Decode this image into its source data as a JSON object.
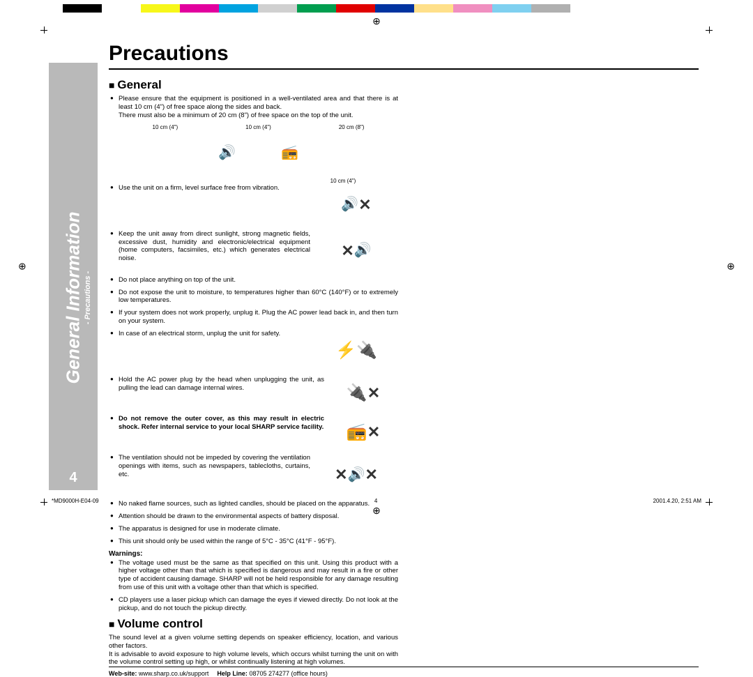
{
  "colorbar": [
    "#000000",
    "#ffffff",
    "#f7f71a",
    "#e2009e",
    "#00a3e0",
    "#d0d0d0",
    "#009e4f",
    "#e00000",
    "#0033a0",
    "#ffe08a",
    "#f08fc0",
    "#7fd0f0",
    "#b0b0b0"
  ],
  "registration_glyph": "⊕",
  "sidebar": {
    "title": "General Information",
    "subtitle": "- Precautions -",
    "page_number": "4"
  },
  "title": "Precautions",
  "sections": {
    "general": {
      "heading": "General",
      "intro": "Please ensure that the equipment is positioned in a well-ventilated area and that there is at least 10 cm (4\") of free space along the sides and back.",
      "intro2": "There must also be a minimum of 20 cm (8\") of free space on the top of the unit.",
      "dims": {
        "side1": "10 cm (4\")",
        "side2": "10 cm (4\")",
        "top": "20 cm (8\")",
        "side3": "10 cm (4\")"
      },
      "items": [
        "Use the unit on a firm, level surface free from vibration.",
        "Keep the unit away from direct sunlight, strong magnetic fields, excessive dust, humidity and electronic/electrical equipment (home computers, facsimiles, etc.) which generates electrical noise.",
        "Do not place anything on top of the unit.",
        "Do not expose the unit to moisture, to temperatures higher than 60°C (140°F) or to extremely low temperatures.",
        "If your system does not work properly, unplug it. Plug the AC power lead back in, and then turn on your system.",
        "In case of an electrical storm, unplug the unit for safety.",
        "Hold the AC power plug by the head when unplugging the unit, as pulling the lead can damage internal wires.",
        "Do not remove the outer cover, as this may result in electric shock. Refer internal service to your local SHARP service facility.",
        "The ventilation should not be impeded by covering the ventilation openings with items, such as newspapers, tablecloths, curtains, etc.",
        "No naked flame sources, such as lighted candles, should be placed on the apparatus.",
        "Attention should be drawn to the environmental aspects of battery disposal.",
        "The apparatus is designed for use in moderate climate.",
        "This unit should only be used within the range of 5°C - 35°C (41°F - 95°F)."
      ],
      "warnings_head": "Warnings:",
      "warnings": [
        "The voltage used must be the same as that specified on this unit. Using this product with a higher voltage other than that which is specified is dangerous and may result in a fire or other type of accident causing damage. SHARP will not be held responsible for any damage resulting from use of this unit with a voltage other than that which is specified.",
        "CD players use a laser pickup which can damage the eyes if viewed directly. Do not look at the pickup, and do not touch the pickup directly."
      ]
    },
    "volume": {
      "heading": "Volume control",
      "text": "The sound level at a given volume setting depends on speaker efficiency, location, and various other factors.\nIt is advisable to avoid exposure to high volume levels, which occurs whilst turning the unit on with the volume control setting up high, or whilst continually listening at high volumes."
    }
  },
  "footer": {
    "website_label": "Web-site:",
    "website": "www.sharp.co.uk/support",
    "helpline_label": "Help Line:",
    "helpline": "08705 274277 (office hours)"
  },
  "bleed": {
    "docid": "*MD9000H-E04-09",
    "page": "4",
    "timestamp": "2001.4.20, 2:51 AM"
  },
  "icons": {
    "cross": "✕",
    "stereo": "🔊",
    "plug": "🔌",
    "storm": "⚡",
    "device": "📻"
  }
}
